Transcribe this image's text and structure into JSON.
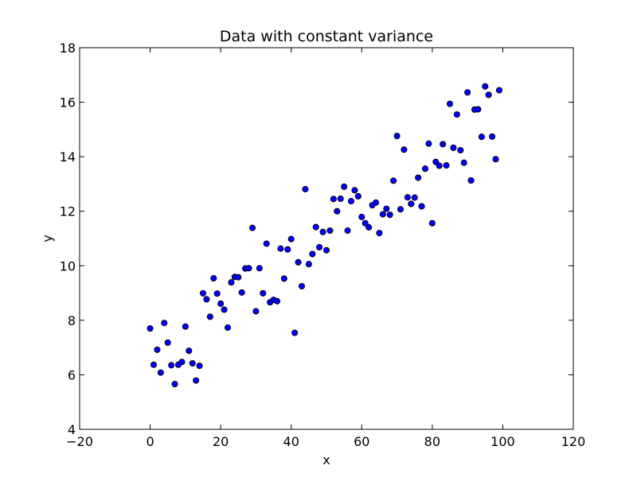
{
  "chart_data": {
    "type": "scatter",
    "title": "Data with constant variance",
    "xlabel": "x",
    "ylabel": "y",
    "xlim": [
      -20,
      120
    ],
    "ylim": [
      4,
      18
    ],
    "xticks": [
      -20,
      0,
      20,
      40,
      60,
      80,
      100,
      120
    ],
    "yticks": [
      4,
      6,
      8,
      10,
      12,
      14,
      16,
      18
    ],
    "grid": false,
    "marker_color": "#0000ff",
    "series": [
      {
        "x": [
          0,
          1,
          2,
          3,
          4,
          5,
          6,
          7,
          8,
          9,
          10,
          11,
          12,
          13,
          14,
          15,
          16,
          17,
          18,
          19,
          20,
          21,
          22,
          23,
          24,
          25,
          26,
          27,
          28,
          29,
          30,
          31,
          32,
          33,
          34,
          35,
          36,
          37,
          38,
          39,
          40,
          41,
          42,
          43,
          44,
          45,
          46,
          47,
          48,
          49,
          50,
          51,
          52,
          53,
          54,
          55,
          56,
          57,
          58,
          59,
          60,
          61,
          62,
          63,
          64,
          65,
          66,
          67,
          68,
          69,
          70,
          71,
          72,
          73,
          74,
          75,
          76,
          77,
          78,
          79,
          80,
          81,
          82,
          83,
          84,
          85,
          86,
          87,
          88,
          89,
          90,
          91,
          92,
          93,
          94,
          95,
          96,
          97,
          98,
          99
        ],
        "y": [
          7.7,
          6.37,
          6.92,
          6.08,
          7.9,
          7.18,
          6.35,
          5.66,
          6.37,
          6.47,
          7.77,
          6.88,
          6.42,
          5.79,
          6.33,
          8.99,
          8.77,
          8.13,
          9.54,
          8.98,
          8.61,
          8.39,
          7.73,
          9.39,
          9.59,
          9.58,
          9.02,
          9.9,
          9.91,
          11.39,
          8.33,
          9.91,
          8.99,
          10.81,
          8.66,
          8.75,
          8.7,
          10.63,
          9.53,
          10.6,
          10.98,
          7.54,
          10.13,
          9.25,
          12.81,
          10.06,
          10.43,
          11.42,
          10.68,
          11.24,
          10.57,
          11.29,
          12.45,
          12.0,
          12.46,
          12.9,
          11.29,
          12.37,
          12.77,
          12.55,
          11.79,
          11.56,
          11.41,
          12.22,
          12.32,
          11.2,
          11.89,
          12.09,
          11.87,
          13.12,
          14.76,
          12.07,
          14.26,
          12.51,
          12.27,
          12.5,
          13.23,
          12.18,
          13.56,
          14.48,
          11.56,
          13.81,
          13.67,
          14.46,
          13.68,
          15.94,
          14.33,
          15.55,
          14.24,
          13.78,
          16.36,
          13.13,
          15.73,
          15.74,
          14.73,
          16.58,
          16.27,
          14.74,
          13.91,
          16.44
        ]
      }
    ]
  }
}
